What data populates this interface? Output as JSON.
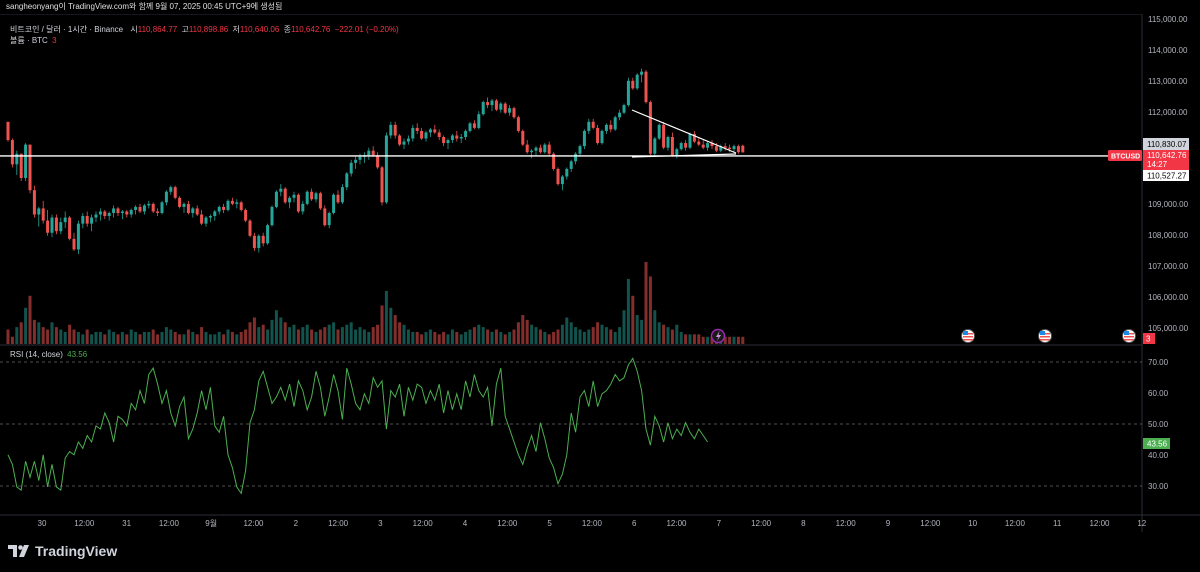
{
  "header": {
    "caption": "sangheonyang이 TradingView.com와 함께 9월 07, 2025 00:45 UTC+9에 생성됨"
  },
  "legend": {
    "symbol": "비트코인 / 달러 · 1시간 · Binance",
    "open_label": "시",
    "open": "110,864.77",
    "high_label": "고",
    "high": "110,898.86",
    "low_label": "저",
    "low": "110,640.06",
    "close_label": "종",
    "close": "110,642.76",
    "change": "−222.01 (−0.20%)",
    "volume_label": "볼륨 · BTC",
    "volume_value": "3"
  },
  "rsi": {
    "label": "RSI (14, close)",
    "value": "43.56",
    "levels": [
      "70.00",
      "60.00",
      "50.00",
      "40.00",
      "30.00"
    ]
  },
  "price_axis": {
    "ticks": [
      "115,000.00",
      "114,000.00",
      "113,000.00",
      "112,000.00",
      "109,000.00",
      "108,000.00",
      "107,000.00",
      "106,000.00",
      "105,000.00"
    ],
    "marker_upper": "110,830.07",
    "marker_symbol": "BTCUSD",
    "marker_price": "110,642.76",
    "marker_countdown": "14:27",
    "marker_lower": "110,527.27",
    "volume_marker": "3"
  },
  "time_axis": {
    "labels": [
      "30",
      "12:00",
      "31",
      "12:00",
      "9월",
      "12:00",
      "2",
      "12:00",
      "3",
      "12:00",
      "4",
      "12:00",
      "5",
      "12:00",
      "6",
      "12:00",
      "7",
      "12:00",
      "8",
      "12:00",
      "9",
      "12:00",
      "10",
      "12:00",
      "11",
      "12:00",
      "12"
    ]
  },
  "branding": {
    "logo_text": "TradingView"
  },
  "colors": {
    "up": "#26a69a",
    "down": "#ef5350",
    "rsi_line": "#4caf50",
    "background": "#000000",
    "label_red": "#f23645",
    "label_green": "#4caf50"
  },
  "chart_data": {
    "type": "candlestick",
    "price_range": [
      104800,
      115000
    ],
    "rsi_range": [
      25,
      72
    ],
    "support_level": 110527,
    "candles": [
      [
        111650,
        111650,
        111000,
        111050
      ],
      [
        111050,
        111100,
        110150,
        110250
      ],
      [
        110250,
        110700,
        109900,
        110600
      ],
      [
        110600,
        110600,
        109700,
        109800
      ],
      [
        109800,
        110950,
        109700,
        110900
      ],
      [
        110900,
        110900,
        109300,
        109400
      ],
      [
        109400,
        109550,
        108500,
        108600
      ],
      [
        108600,
        108850,
        108200,
        108800
      ],
      [
        108800,
        109050,
        108300,
        108400
      ],
      [
        108400,
        108750,
        107900,
        108000
      ],
      [
        108000,
        108600,
        107850,
        108500
      ],
      [
        108500,
        108600,
        107950,
        108050
      ],
      [
        108050,
        108500,
        107950,
        108350
      ],
      [
        108350,
        108700,
        108150,
        108500
      ],
      [
        108500,
        108550,
        107750,
        107800
      ],
      [
        107800,
        108000,
        107400,
        107450
      ],
      [
        107450,
        108400,
        107300,
        108300
      ],
      [
        108300,
        108650,
        108150,
        108550
      ],
      [
        108550,
        108700,
        108200,
        108300
      ],
      [
        108300,
        108600,
        108050,
        108500
      ],
      [
        108500,
        108700,
        108350,
        108600
      ],
      [
        108600,
        108800,
        108400,
        108700
      ],
      [
        108700,
        108750,
        108450,
        108550
      ],
      [
        108550,
        108700,
        108400,
        108650
      ],
      [
        108650,
        108900,
        108500,
        108800
      ],
      [
        108800,
        108850,
        108550,
        108650
      ],
      [
        108650,
        108750,
        108450,
        108700
      ],
      [
        108700,
        108750,
        108500,
        108600
      ],
      [
        108600,
        108800,
        108500,
        108750
      ],
      [
        108750,
        108900,
        108600,
        108850
      ],
      [
        108850,
        108950,
        108650,
        108700
      ],
      [
        108700,
        108950,
        108600,
        108900
      ],
      [
        108900,
        109050,
        108800,
        108950
      ],
      [
        108950,
        109000,
        108650,
        108700
      ],
      [
        108700,
        108800,
        108550,
        108650
      ],
      [
        108650,
        109050,
        108600,
        109000
      ],
      [
        109000,
        109400,
        108900,
        109350
      ],
      [
        109350,
        109550,
        109250,
        109500
      ],
      [
        109500,
        109550,
        109100,
        109150
      ],
      [
        109150,
        109200,
        108800,
        108850
      ],
      [
        108850,
        109000,
        108650,
        108950
      ],
      [
        108950,
        109050,
        108600,
        108650
      ],
      [
        108650,
        108850,
        108500,
        108800
      ],
      [
        108800,
        108900,
        108550,
        108600
      ],
      [
        108600,
        108750,
        108250,
        108300
      ],
      [
        108300,
        108550,
        108200,
        108500
      ],
      [
        108500,
        108600,
        108350,
        108550
      ],
      [
        108550,
        108750,
        108400,
        108700
      ],
      [
        108700,
        108900,
        108600,
        108850
      ],
      [
        108850,
        108950,
        108650,
        108750
      ],
      [
        108750,
        109100,
        108700,
        109050
      ],
      [
        109050,
        109150,
        108900,
        108950
      ],
      [
        108950,
        109100,
        108800,
        109000
      ],
      [
        109000,
        109050,
        108700,
        108750
      ],
      [
        108750,
        108800,
        108350,
        108400
      ],
      [
        108400,
        108450,
        107850,
        107900
      ],
      [
        107900,
        108000,
        107400,
        107500
      ],
      [
        107500,
        107950,
        107350,
        107900
      ],
      [
        107900,
        108000,
        107550,
        107650
      ],
      [
        107650,
        108300,
        107600,
        108250
      ],
      [
        108250,
        108900,
        108200,
        108850
      ],
      [
        108850,
        109400,
        108800,
        109350
      ],
      [
        109350,
        109600,
        109200,
        109450
      ],
      [
        109450,
        109500,
        108950,
        109000
      ],
      [
        109000,
        109200,
        108800,
        109150
      ],
      [
        109150,
        109350,
        109000,
        109250
      ],
      [
        109250,
        109300,
        108650,
        108700
      ],
      [
        108700,
        109050,
        108600,
        108950
      ],
      [
        108950,
        109400,
        108900,
        109350
      ],
      [
        109350,
        109450,
        109050,
        109100
      ],
      [
        109100,
        109350,
        109000,
        109300
      ],
      [
        109300,
        109350,
        108750,
        108800
      ],
      [
        108800,
        108900,
        108200,
        108250
      ],
      [
        108250,
        108700,
        108150,
        108650
      ],
      [
        108650,
        109300,
        108600,
        109250
      ],
      [
        109250,
        109400,
        108950,
        109000
      ],
      [
        109000,
        109600,
        108950,
        109500
      ],
      [
        109500,
        110000,
        109400,
        109950
      ],
      [
        109950,
        110400,
        109850,
        110300
      ],
      [
        110300,
        110500,
        110100,
        110400
      ],
      [
        110400,
        110600,
        110250,
        110500
      ],
      [
        110500,
        110650,
        110300,
        110550
      ],
      [
        110550,
        110800,
        110400,
        110700
      ],
      [
        110700,
        110850,
        110500,
        110550
      ],
      [
        110550,
        110650,
        110100,
        110150
      ],
      [
        110150,
        110200,
        108900,
        109000
      ],
      [
        109000,
        111300,
        108950,
        111200
      ],
      [
        111200,
        111650,
        111100,
        111550
      ],
      [
        111550,
        111650,
        111100,
        111200
      ],
      [
        111200,
        111250,
        110850,
        110900
      ],
      [
        110900,
        111100,
        110750,
        111000
      ],
      [
        111000,
        111200,
        110900,
        111100
      ],
      [
        111100,
        111550,
        111000,
        111450
      ],
      [
        111450,
        111600,
        111250,
        111350
      ],
      [
        111350,
        111450,
        111050,
        111100
      ],
      [
        111100,
        111350,
        111000,
        111300
      ],
      [
        111300,
        111450,
        111150,
        111400
      ],
      [
        111400,
        111550,
        111250,
        111300
      ],
      [
        111300,
        111400,
        111050,
        111150
      ],
      [
        111150,
        111200,
        110850,
        110950
      ],
      [
        110950,
        111100,
        110750,
        111050
      ],
      [
        111050,
        111250,
        110950,
        111200
      ],
      [
        111200,
        111350,
        111000,
        111100
      ],
      [
        111100,
        111250,
        110950,
        111150
      ],
      [
        111150,
        111400,
        111050,
        111350
      ],
      [
        111350,
        111650,
        111300,
        111600
      ],
      [
        111600,
        111700,
        111400,
        111450
      ],
      [
        111450,
        112000,
        111400,
        111900
      ],
      [
        111900,
        112350,
        111850,
        112300
      ],
      [
        112300,
        112450,
        112100,
        112200
      ],
      [
        112200,
        112400,
        112000,
        112350
      ],
      [
        112350,
        112400,
        112000,
        112050
      ],
      [
        112050,
        112300,
        111950,
        112250
      ],
      [
        112250,
        112300,
        111900,
        111950
      ],
      [
        111950,
        112200,
        111850,
        112100
      ],
      [
        112100,
        112150,
        111750,
        111800
      ],
      [
        111800,
        111850,
        111300,
        111350
      ],
      [
        111350,
        111400,
        110850,
        110900
      ],
      [
        110900,
        111050,
        110600,
        110650
      ],
      [
        110650,
        110750,
        110450,
        110700
      ],
      [
        110700,
        110850,
        110550,
        110800
      ],
      [
        110800,
        110900,
        110600,
        110650
      ],
      [
        110650,
        110950,
        110600,
        110900
      ],
      [
        110900,
        111000,
        110550,
        110600
      ],
      [
        110600,
        110650,
        110050,
        110100
      ],
      [
        110100,
        110150,
        109550,
        109600
      ],
      [
        109600,
        109900,
        109400,
        109850
      ],
      [
        109850,
        110150,
        109750,
        110100
      ],
      [
        110100,
        110400,
        110000,
        110350
      ],
      [
        110350,
        110650,
        110250,
        110600
      ],
      [
        110600,
        110900,
        110500,
        110850
      ],
      [
        110850,
        111400,
        110750,
        111350
      ],
      [
        111350,
        111750,
        111250,
        111650
      ],
      [
        111650,
        111750,
        111400,
        111450
      ],
      [
        111450,
        111550,
        110900,
        110950
      ],
      [
        110950,
        111400,
        110900,
        111350
      ],
      [
        111350,
        111600,
        111250,
        111550
      ],
      [
        111550,
        111700,
        111300,
        111400
      ],
      [
        111400,
        111850,
        111350,
        111800
      ],
      [
        111800,
        112050,
        111700,
        111950
      ],
      [
        111950,
        112250,
        111900,
        112200
      ],
      [
        112200,
        113100,
        112150,
        113000
      ],
      [
        113000,
        113100,
        112700,
        112750
      ],
      [
        112750,
        113250,
        112700,
        113200
      ],
      [
        113200,
        113400,
        112950,
        113300
      ],
      [
        113300,
        113350,
        112250,
        112300
      ],
      [
        112300,
        112350,
        110550,
        110600
      ],
      [
        110600,
        111150,
        110500,
        111100
      ],
      [
        111100,
        111600,
        111050,
        111550
      ],
      [
        111550,
        111650,
        110750,
        110800
      ],
      [
        110800,
        111200,
        110700,
        111150
      ],
      [
        111150,
        111300,
        110500,
        110550
      ],
      [
        110550,
        110800,
        110450,
        110750
      ],
      [
        110750,
        111000,
        110700,
        110950
      ],
      [
        110950,
        111050,
        110700,
        110800
      ],
      [
        110800,
        111300,
        110750,
        111250
      ],
      [
        111250,
        111350,
        110950,
        111000
      ],
      [
        111000,
        111150,
        110850,
        110900
      ],
      [
        110900,
        111050,
        110750,
        110800
      ],
      [
        110800,
        111000,
        110700,
        110950
      ],
      [
        110950,
        111050,
        110750,
        110850
      ],
      [
        110850,
        110950,
        110650,
        110700
      ],
      [
        110700,
        110900,
        110650,
        110850
      ],
      [
        110850,
        110950,
        110700,
        110800
      ],
      [
        110800,
        110900,
        110650,
        110750
      ],
      [
        110750,
        110900,
        110650,
        110850
      ],
      [
        110850,
        110900,
        110600,
        110650
      ],
      [
        110864,
        110898,
        110640,
        110642
      ]
    ],
    "volumes": [
      6,
      3,
      7,
      9,
      15,
      20,
      10,
      9,
      7,
      6,
      9,
      7,
      6,
      5,
      8,
      6,
      5,
      4,
      6,
      4,
      5,
      5,
      4,
      6,
      5,
      4,
      5,
      4,
      6,
      5,
      4,
      5,
      5,
      6,
      4,
      5,
      7,
      6,
      5,
      4,
      4,
      6,
      5,
      4,
      7,
      5,
      4,
      4,
      5,
      4,
      6,
      5,
      4,
      5,
      6,
      9,
      11,
      7,
      8,
      6,
      10,
      14,
      11,
      9,
      7,
      8,
      6,
      7,
      8,
      6,
      5,
      6,
      7,
      8,
      9,
      6,
      7,
      8,
      9,
      6,
      7,
      6,
      5,
      7,
      8,
      16,
      22,
      15,
      12,
      9,
      8,
      6,
      5,
      5,
      4,
      5,
      6,
      5,
      4,
      5,
      4,
      6,
      5,
      4,
      5,
      6,
      7,
      8,
      7,
      6,
      5,
      6,
      5,
      4,
      5,
      6,
      9,
      12,
      10,
      8,
      7,
      6,
      5,
      4,
      5,
      6,
      8,
      11,
      9,
      7,
      6,
      5,
      6,
      7,
      9,
      8,
      7,
      6,
      5,
      7,
      14,
      27,
      20,
      12,
      10,
      34,
      28,
      14,
      9,
      8,
      7,
      6,
      8,
      5,
      4,
      4,
      4,
      4,
      3,
      3,
      3,
      4,
      3,
      3,
      3,
      3,
      3,
      3,
      3,
      3
    ],
    "rsi_values": [
      40,
      37,
      30,
      29,
      38,
      33,
      38,
      32,
      40,
      30,
      37,
      30,
      29,
      39,
      41,
      40,
      44,
      42,
      46,
      44,
      49,
      48,
      53,
      50,
      44,
      52,
      51,
      49,
      56,
      54,
      60,
      56,
      65,
      67,
      62,
      56,
      60,
      53,
      49,
      55,
      58,
      45,
      48,
      53,
      60,
      54,
      61,
      49,
      47,
      52,
      40,
      36,
      30,
      28,
      35,
      50,
      54,
      63,
      66,
      61,
      56,
      58,
      61,
      57,
      62,
      55,
      63,
      60,
      54,
      58,
      66,
      61,
      52,
      58,
      65,
      60,
      51,
      67,
      62,
      56,
      54,
      59,
      56,
      64,
      61,
      63,
      48,
      60,
      58,
      62,
      52,
      61,
      57,
      62,
      61,
      56,
      60,
      57,
      62,
      53,
      60,
      54,
      59,
      54,
      63,
      58,
      65,
      60,
      58,
      61,
      49,
      62,
      67,
      52,
      48,
      44,
      40,
      37,
      42,
      46,
      41,
      50,
      45,
      39,
      36,
      31,
      34,
      40,
      53,
      47,
      58,
      60,
      55,
      63,
      55,
      59,
      60,
      62,
      65,
      63,
      64,
      68,
      70,
      66,
      60,
      48,
      43,
      52,
      49,
      44,
      50,
      45,
      48,
      46,
      50,
      47,
      45,
      48,
      46,
      44
    ]
  }
}
